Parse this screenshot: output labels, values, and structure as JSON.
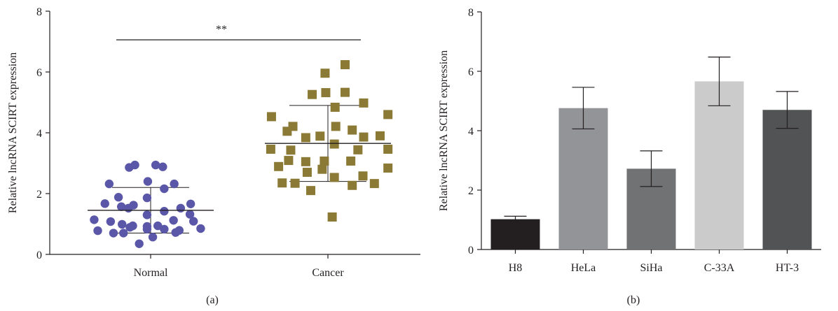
{
  "chart_data": [
    {
      "type": "scatter",
      "panel_label": "(a)",
      "ylabel": "Relative lncRNA SCIRT expression",
      "xlabel": "",
      "categories": [
        "Normal",
        "Cancer"
      ],
      "ylim": [
        0,
        8
      ],
      "yticks": [
        "0",
        "2",
        "4",
        "6",
        "8"
      ],
      "significance": "**",
      "series": [
        {
          "category": "Normal",
          "marker": "circle",
          "color": "#5b57a8",
          "mean": 1.45,
          "sd": 0.75,
          "points": [
            {
              "x": -0.58,
              "y": 2.32
            },
            {
              "x": 0.33,
              "y": 2.32
            },
            {
              "x": -0.3,
              "y": 2.86
            },
            {
              "x": -0.22,
              "y": 2.94
            },
            {
              "x": 0.07,
              "y": 2.94
            },
            {
              "x": 0.17,
              "y": 2.88
            },
            {
              "x": -0.04,
              "y": 2.4
            },
            {
              "x": 0.19,
              "y": 2.16
            },
            {
              "x": -0.45,
              "y": 1.88
            },
            {
              "x": -0.05,
              "y": 1.86
            },
            {
              "x": -0.64,
              "y": 1.67
            },
            {
              "x": -0.41,
              "y": 1.57
            },
            {
              "x": -0.24,
              "y": 1.62
            },
            {
              "x": 0.56,
              "y": 1.66
            },
            {
              "x": 0.42,
              "y": 1.52
            },
            {
              "x": -0.31,
              "y": 1.52
            },
            {
              "x": 0.19,
              "y": 1.42
            },
            {
              "x": -0.05,
              "y": 1.3
            },
            {
              "x": 0.55,
              "y": 1.32
            },
            {
              "x": 0.32,
              "y": 1.12
            },
            {
              "x": -0.79,
              "y": 1.14
            },
            {
              "x": -0.56,
              "y": 1.08
            },
            {
              "x": -0.4,
              "y": 0.99
            },
            {
              "x": -0.25,
              "y": 0.94
            },
            {
              "x": -0.05,
              "y": 0.92
            },
            {
              "x": 0.1,
              "y": 0.94
            },
            {
              "x": 0.6,
              "y": 1.09
            },
            {
              "x": -0.74,
              "y": 0.78
            },
            {
              "x": -0.52,
              "y": 0.7
            },
            {
              "x": -0.29,
              "y": 0.89
            },
            {
              "x": -0.05,
              "y": 0.83
            },
            {
              "x": 0.19,
              "y": 0.83
            },
            {
              "x": 0.4,
              "y": 0.79
            },
            {
              "x": 0.7,
              "y": 0.85
            },
            {
              "x": -0.38,
              "y": 0.7
            },
            {
              "x": 0.03,
              "y": 0.57
            },
            {
              "x": 0.35,
              "y": 0.72
            },
            {
              "x": -0.16,
              "y": 0.35
            }
          ]
        },
        {
          "category": "Cancer",
          "marker": "square",
          "color": "#8b7a35",
          "mean": 3.65,
          "sd": 1.25,
          "points": [
            {
              "x": -0.04,
              "y": 5.96
            },
            {
              "x": 0.24,
              "y": 6.24
            },
            {
              "x": -0.22,
              "y": 5.26
            },
            {
              "x": -0.03,
              "y": 5.32
            },
            {
              "x": 0.24,
              "y": 5.33
            },
            {
              "x": 0.5,
              "y": 4.98
            },
            {
              "x": 0.1,
              "y": 4.84
            },
            {
              "x": -0.79,
              "y": 4.53
            },
            {
              "x": 0.84,
              "y": 4.6
            },
            {
              "x": -0.57,
              "y": 4.05
            },
            {
              "x": -0.49,
              "y": 4.21
            },
            {
              "x": -0.31,
              "y": 3.84
            },
            {
              "x": 0.11,
              "y": 4.21
            },
            {
              "x": 0.34,
              "y": 4.09
            },
            {
              "x": -0.11,
              "y": 3.89
            },
            {
              "x": 0.5,
              "y": 3.86
            },
            {
              "x": 0.73,
              "y": 3.9
            },
            {
              "x": -0.8,
              "y": 3.46
            },
            {
              "x": -0.52,
              "y": 3.43
            },
            {
              "x": 0.09,
              "y": 3.63
            },
            {
              "x": 0.42,
              "y": 3.44
            },
            {
              "x": 0.84,
              "y": 3.46
            },
            {
              "x": -0.55,
              "y": 3.09
            },
            {
              "x": -0.31,
              "y": 3.05
            },
            {
              "x": -0.05,
              "y": 3.07
            },
            {
              "x": 0.32,
              "y": 3.07
            },
            {
              "x": -0.69,
              "y": 2.89
            },
            {
              "x": -0.29,
              "y": 2.7
            },
            {
              "x": -0.08,
              "y": 2.8
            },
            {
              "x": 0.09,
              "y": 2.53
            },
            {
              "x": 0.49,
              "y": 2.58
            },
            {
              "x": 0.84,
              "y": 2.84
            },
            {
              "x": -0.64,
              "y": 2.35
            },
            {
              "x": -0.46,
              "y": 2.34
            },
            {
              "x": -0.24,
              "y": 2.1
            },
            {
              "x": 0.34,
              "y": 2.27
            },
            {
              "x": 0.65,
              "y": 2.33
            },
            {
              "x": 0.06,
              "y": 1.23
            }
          ]
        }
      ]
    },
    {
      "type": "bar",
      "panel_label": "(b)",
      "ylabel": "Relative lncRNA SCIRT expression",
      "xlabel": "",
      "categories": [
        "H8",
        "HeLa",
        "SiHa",
        "C-33A",
        "HT-3"
      ],
      "values": [
        1.02,
        4.76,
        2.72,
        5.66,
        4.7
      ],
      "errors": [
        0.1,
        0.7,
        0.6,
        0.82,
        0.62
      ],
      "colors": [
        "#231f20",
        "#939497",
        "#717273",
        "#cbcbcb",
        "#525354"
      ],
      "ylim": [
        0,
        8
      ],
      "yticks": [
        "0",
        "2",
        "4",
        "6",
        "8"
      ]
    }
  ]
}
